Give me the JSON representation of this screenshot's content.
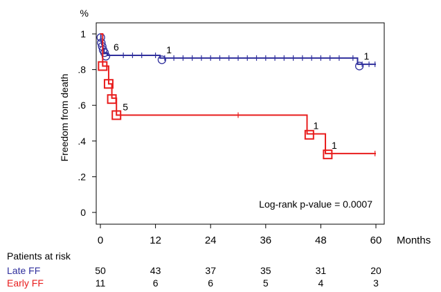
{
  "chart_data": {
    "type": "line",
    "subtype": "kaplan-meier",
    "y_unit": "%",
    "xlabel": "Months",
    "ylabel": "Freedom from death",
    "xlim": [
      0,
      60
    ],
    "ylim": [
      0,
      1
    ],
    "x_ticks": [
      0,
      12,
      24,
      36,
      48,
      60
    ],
    "x_tick_labels": [
      "0",
      "12",
      "24",
      "36",
      "48",
      "60"
    ],
    "y_ticks": [
      0,
      0.2,
      0.4,
      0.6,
      0.8,
      1
    ],
    "y_tick_labels": [
      "0",
      ".2",
      ".4",
      ".6",
      ".8",
      "1"
    ],
    "grid": false,
    "annotation": "Log-rank p-value = 0.0007",
    "series": [
      {
        "name": "Late FF",
        "color": "#2e2e9c",
        "x": [
          0,
          0.1,
          0.3,
          0.5,
          0.8,
          1.5,
          13,
          56,
          60
        ],
        "y": [
          1.0,
          0.96,
          0.94,
          0.92,
          0.89,
          0.88,
          0.865,
          0.83,
          0.83
        ],
        "markers_x": [
          0.1,
          0.2,
          0.4,
          0.6,
          0.9,
          1.2,
          13.4,
          56.4
        ],
        "markers_y": [
          0.98,
          0.95,
          0.93,
          0.91,
          0.895,
          0.875,
          0.855,
          0.82
        ],
        "censor_x": [
          5,
          7,
          9,
          12,
          14,
          16,
          18,
          20,
          22,
          24,
          26,
          28,
          30,
          32,
          34,
          36,
          38,
          40,
          42,
          44,
          46,
          48,
          50,
          52,
          55,
          57,
          58.5,
          59.8
        ],
        "step_labels": [
          {
            "x": 1.5,
            "y": 0.88,
            "text": "6"
          },
          {
            "x": 13,
            "y": 0.865,
            "text": "1"
          },
          {
            "x": 56,
            "y": 0.83,
            "text": "1"
          }
        ]
      },
      {
        "name": "Early FF",
        "color": "#e81c1c",
        "x": [
          0,
          0.5,
          1.8,
          2.5,
          3.5,
          45,
          49,
          60
        ],
        "y": [
          1.0,
          0.82,
          0.72,
          0.64,
          0.545,
          0.44,
          0.33,
          0.33
        ],
        "markers_x": [
          0.5,
          1.8,
          2.5,
          3.5,
          45.5,
          49.5
        ],
        "markers_y": [
          0.82,
          0.72,
          0.635,
          0.545,
          0.435,
          0.325
        ],
        "censor_x": [
          30,
          59.8
        ],
        "step_labels": [
          {
            "x": 3.5,
            "y": 0.545,
            "text": "5"
          },
          {
            "x": 45,
            "y": 0.44,
            "text": "1"
          },
          {
            "x": 49,
            "y": 0.33,
            "text": "1"
          }
        ]
      }
    ],
    "risk_table": {
      "title": "Patients at risk",
      "rows": [
        {
          "label": "Late FF",
          "color": "#2e2e9c",
          "values": [
            "50",
            "43",
            "37",
            "35",
            "31",
            "20"
          ]
        },
        {
          "label": "Early FF",
          "color": "#e81c1c",
          "values": [
            "11",
            "6",
            "6",
            "5",
            "4",
            "3"
          ]
        }
      ]
    }
  }
}
